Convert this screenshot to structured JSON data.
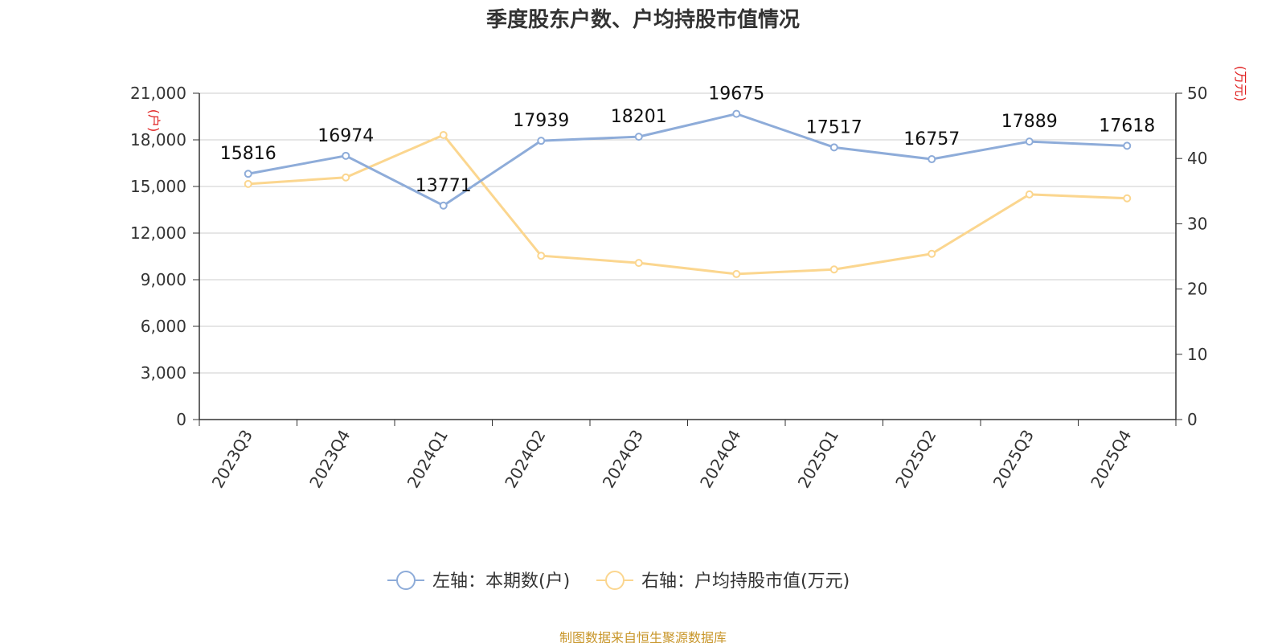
{
  "chart_data": {
    "type": "line",
    "title": "季度股东户数、户均持股市值情况",
    "categories": [
      "2023Q3",
      "2023Q4",
      "2024Q1",
      "2024Q2",
      "2024Q3",
      "2024Q4",
      "2025Q1",
      "2025Q2",
      "2025Q3",
      "2025Q4"
    ],
    "left_axis": {
      "unit_label": "(户)",
      "ylim": [
        0,
        21000
      ],
      "ticks": [
        "0",
        "3,000",
        "6,000",
        "9,000",
        "12,000",
        "15,000",
        "18,000",
        "21,000"
      ]
    },
    "right_axis": {
      "unit_label": "(万元)",
      "ylim": [
        0,
        50
      ],
      "ticks": [
        "0",
        "10",
        "20",
        "30",
        "40",
        "50"
      ]
    },
    "series": [
      {
        "name": "左轴：本期数(户)",
        "axis": "left",
        "color": "#8eacd9",
        "values": [
          15816,
          16974,
          13771,
          17939,
          18201,
          19675,
          17517,
          16757,
          17889,
          17618
        ],
        "show_labels": true
      },
      {
        "name": "右轴：户均持股市值(万元)",
        "axis": "right",
        "color": "#fbd68f",
        "values": [
          36.1,
          37.1,
          43.6,
          25.1,
          24.0,
          22.3,
          23.0,
          25.4,
          34.5,
          33.9
        ],
        "show_labels": false
      }
    ],
    "grid": true,
    "legend_position": "bottom"
  },
  "credit": "制图数据来自恒生聚源数据库",
  "colors": {
    "axis_unit": "#e02020",
    "text": "#333333",
    "grid": "#cccccc",
    "credit": "#c8962a"
  }
}
